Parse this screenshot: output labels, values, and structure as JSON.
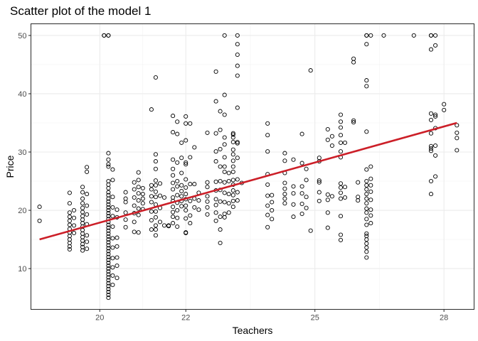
{
  "chart_data": {
    "type": "scatter",
    "title": "Scatter plot of the model 1",
    "xlabel": "Teachers",
    "ylabel": "Price",
    "xlim": [
      18.4,
      28.7
    ],
    "ylim": [
      3,
      52
    ],
    "x_ticks": [
      {
        "value": 20,
        "label": "20"
      },
      {
        "value": 22,
        "label": "22"
      },
      {
        "value": 25,
        "label": "25"
      },
      {
        "value": 28,
        "label": "28"
      }
    ],
    "y_ticks": [
      10,
      20,
      30,
      40,
      50
    ],
    "grid": true,
    "fit_line": {
      "x": [
        18.6,
        28.3
      ],
      "y": [
        15,
        35
      ],
      "color": "#cc1f28"
    },
    "points": [
      [
        18.6,
        20.6
      ],
      [
        18.6,
        18.2
      ],
      [
        19.3,
        23.0
      ],
      [
        19.3,
        21.2
      ],
      [
        19.3,
        19.6
      ],
      [
        19.3,
        18.9
      ],
      [
        19.3,
        18.2
      ],
      [
        19.3,
        17.5
      ],
      [
        19.3,
        16.8
      ],
      [
        19.3,
        16.2
      ],
      [
        19.3,
        15.6
      ],
      [
        19.3,
        15.0
      ],
      [
        19.3,
        14.4
      ],
      [
        19.3,
        13.8
      ],
      [
        19.3,
        13.3
      ],
      [
        19.4,
        20.0
      ],
      [
        19.4,
        18.7
      ],
      [
        19.4,
        17.4
      ],
      [
        19.4,
        16.1
      ],
      [
        19.6,
        24.0
      ],
      [
        19.6,
        23.1
      ],
      [
        19.6,
        22.0
      ],
      [
        19.6,
        21.2
      ],
      [
        19.6,
        20.4
      ],
      [
        19.6,
        19.7
      ],
      [
        19.6,
        19.0
      ],
      [
        19.6,
        18.4
      ],
      [
        19.6,
        17.8
      ],
      [
        19.6,
        17.2
      ],
      [
        19.6,
        16.6
      ],
      [
        19.6,
        16.0
      ],
      [
        19.6,
        15.4
      ],
      [
        19.6,
        14.8
      ],
      [
        19.6,
        14.2
      ],
      [
        19.6,
        13.7
      ],
      [
        19.6,
        13.1
      ],
      [
        19.7,
        27.4
      ],
      [
        19.7,
        26.6
      ],
      [
        19.7,
        22.8
      ],
      [
        19.7,
        20.8
      ],
      [
        19.7,
        19.3
      ],
      [
        19.7,
        17.6
      ],
      [
        19.7,
        15.7
      ],
      [
        19.7,
        14.6
      ],
      [
        19.7,
        13.4
      ],
      [
        20.1,
        50
      ],
      [
        20.1,
        50
      ],
      [
        20.2,
        50
      ],
      [
        20.2,
        50
      ],
      [
        20.2,
        29.8
      ],
      [
        20.2,
        28.7
      ],
      [
        20.2,
        27.9
      ],
      [
        20.2,
        27.5
      ],
      [
        20.2,
        25.0
      ],
      [
        20.2,
        24.4
      ],
      [
        20.2,
        23.8
      ],
      [
        20.2,
        23.1
      ],
      [
        20.2,
        22.6
      ],
      [
        20.2,
        22.0
      ],
      [
        20.2,
        21.5
      ],
      [
        20.2,
        21.0
      ],
      [
        20.2,
        20.5
      ],
      [
        20.2,
        20.0
      ],
      [
        20.2,
        19.5
      ],
      [
        20.2,
        19.0
      ],
      [
        20.2,
        18.5
      ],
      [
        20.2,
        18.0
      ],
      [
        20.2,
        17.5
      ],
      [
        20.2,
        17.0
      ],
      [
        20.2,
        16.5
      ],
      [
        20.2,
        16.0
      ],
      [
        20.2,
        15.5
      ],
      [
        20.2,
        15.0
      ],
      [
        20.2,
        14.5
      ],
      [
        20.2,
        14.0
      ],
      [
        20.2,
        13.5
      ],
      [
        20.2,
        13.0
      ],
      [
        20.2,
        12.5
      ],
      [
        20.2,
        12.0
      ],
      [
        20.2,
        11.5
      ],
      [
        20.2,
        11.0
      ],
      [
        20.2,
        10.5
      ],
      [
        20.2,
        10.0
      ],
      [
        20.2,
        9.5
      ],
      [
        20.2,
        9.0
      ],
      [
        20.2,
        8.5
      ],
      [
        20.2,
        8.0
      ],
      [
        20.2,
        7.5
      ],
      [
        20.2,
        7.0
      ],
      [
        20.2,
        6.5
      ],
      [
        20.2,
        6.0
      ],
      [
        20.2,
        5.5
      ],
      [
        20.2,
        5.0
      ],
      [
        20.3,
        27.0
      ],
      [
        20.3,
        25.2
      ],
      [
        20.3,
        22.3
      ],
      [
        20.3,
        20.5
      ],
      [
        20.3,
        19.0
      ],
      [
        20.3,
        17.2
      ],
      [
        20.3,
        15.2
      ],
      [
        20.3,
        13.6
      ],
      [
        20.3,
        11.8
      ],
      [
        20.3,
        10.2
      ],
      [
        20.3,
        8.8
      ],
      [
        20.3,
        7.2
      ],
      [
        20.4,
        20.1
      ],
      [
        20.4,
        18.8
      ],
      [
        20.4,
        15.3
      ],
      [
        20.4,
        13.8
      ],
      [
        20.4,
        11.9
      ],
      [
        20.4,
        10.5
      ],
      [
        20.4,
        8.4
      ],
      [
        20.6,
        23.1
      ],
      [
        20.6,
        22.0
      ],
      [
        20.6,
        21.4
      ],
      [
        20.6,
        19.6
      ],
      [
        20.6,
        18.4
      ],
      [
        20.6,
        17.1
      ],
      [
        20.8,
        24.8
      ],
      [
        20.8,
        23.6
      ],
      [
        20.8,
        22.2
      ],
      [
        20.8,
        20.8
      ],
      [
        20.8,
        19.5
      ],
      [
        20.8,
        18.0
      ],
      [
        20.8,
        16.3
      ],
      [
        20.9,
        26.5
      ],
      [
        20.9,
        25.2
      ],
      [
        20.9,
        24.0
      ],
      [
        20.9,
        22.9
      ],
      [
        20.9,
        21.7
      ],
      [
        20.9,
        20.3
      ],
      [
        20.9,
        19.2
      ],
      [
        20.9,
        16.2
      ],
      [
        21.0,
        23.8
      ],
      [
        21.0,
        22.8
      ],
      [
        21.0,
        22.0
      ],
      [
        21.0,
        21.2
      ],
      [
        21.0,
        20.2
      ],
      [
        21.2,
        37.3
      ],
      [
        21.2,
        24.3
      ],
      [
        21.2,
        23.6
      ],
      [
        21.2,
        22.4
      ],
      [
        21.2,
        21.4
      ],
      [
        21.2,
        19.8
      ],
      [
        21.2,
        18.3
      ],
      [
        21.2,
        16.7
      ],
      [
        21.3,
        42.8
      ],
      [
        21.3,
        29.6
      ],
      [
        21.3,
        28.4
      ],
      [
        21.3,
        27.1
      ],
      [
        21.3,
        25.1
      ],
      [
        21.3,
        24.3
      ],
      [
        21.3,
        23.2
      ],
      [
        21.3,
        22.3
      ],
      [
        21.3,
        21.0
      ],
      [
        21.3,
        19.8
      ],
      [
        21.3,
        18.8
      ],
      [
        21.3,
        17.4
      ],
      [
        21.3,
        16.7
      ],
      [
        21.3,
        15.7
      ],
      [
        21.4,
        24.6
      ],
      [
        21.4,
        22.5
      ],
      [
        21.4,
        20.4
      ],
      [
        21.4,
        18.0
      ],
      [
        21.5,
        22.2
      ],
      [
        21.5,
        17.4
      ],
      [
        21.6,
        17.3
      ],
      [
        21.6,
        17.4
      ],
      [
        21.7,
        36.2
      ],
      [
        21.7,
        33.4
      ],
      [
        21.7,
        28.7
      ],
      [
        21.7,
        27.1
      ],
      [
        21.7,
        26.0
      ],
      [
        21.7,
        24.7
      ],
      [
        21.7,
        23.6
      ],
      [
        21.7,
        22.2
      ],
      [
        21.7,
        21.6
      ],
      [
        21.7,
        20.6
      ],
      [
        21.7,
        19.7
      ],
      [
        21.7,
        18.9
      ],
      [
        21.7,
        17.8
      ],
      [
        21.8,
        35.2
      ],
      [
        21.8,
        33.1
      ],
      [
        21.8,
        28.2
      ],
      [
        21.8,
        25.0
      ],
      [
        21.8,
        24.1
      ],
      [
        21.8,
        22.6
      ],
      [
        21.8,
        21.3
      ],
      [
        21.8,
        20.0
      ],
      [
        21.8,
        18.7
      ],
      [
        21.8,
        17.2
      ],
      [
        21.9,
        31.6
      ],
      [
        21.9,
        29.0
      ],
      [
        21.9,
        26.4
      ],
      [
        21.9,
        24.3
      ],
      [
        21.9,
        23.3
      ],
      [
        21.9,
        22.4
      ],
      [
        21.9,
        21.6
      ],
      [
        21.9,
        20.7
      ],
      [
        22.0,
        36.1
      ],
      [
        22.0,
        34.9
      ],
      [
        22.0,
        32.0
      ],
      [
        22.0,
        28.2
      ],
      [
        22.0,
        27.9
      ],
      [
        22.0,
        25.3
      ],
      [
        22.0,
        23.9
      ],
      [
        22.0,
        22.8
      ],
      [
        22.0,
        21.9
      ],
      [
        22.0,
        20.8
      ],
      [
        22.0,
        20.0
      ],
      [
        22.0,
        18.6
      ],
      [
        22.0,
        16.1
      ],
      [
        22.0,
        16.2
      ],
      [
        22.1,
        34.9
      ],
      [
        22.1,
        29.1
      ],
      [
        22.1,
        24.5
      ],
      [
        22.1,
        21.6
      ],
      [
        22.1,
        19.1
      ],
      [
        22.1,
        17.8
      ],
      [
        22.2,
        30.8
      ],
      [
        22.2,
        24.5
      ],
      [
        22.2,
        22.0
      ],
      [
        22.2,
        20.5
      ],
      [
        22.3,
        23.0
      ],
      [
        22.3,
        21.7
      ],
      [
        22.3,
        20.1
      ],
      [
        22.5,
        33.3
      ],
      [
        22.5,
        24.8
      ],
      [
        22.5,
        24.0
      ],
      [
        22.5,
        22.4
      ],
      [
        22.5,
        21.5
      ],
      [
        22.5,
        20.5
      ],
      [
        22.5,
        19.3
      ],
      [
        22.7,
        43.8
      ],
      [
        22.7,
        38.7
      ],
      [
        22.7,
        33.2
      ],
      [
        22.7,
        30.1
      ],
      [
        22.7,
        28.4
      ],
      [
        22.7,
        24.9
      ],
      [
        22.7,
        23.4
      ],
      [
        22.7,
        21.9
      ],
      [
        22.7,
        20.9
      ],
      [
        22.7,
        19.6
      ],
      [
        22.7,
        18.2
      ],
      [
        22.8,
        37.0
      ],
      [
        22.8,
        33.8
      ],
      [
        22.8,
        30.5
      ],
      [
        22.8,
        27.5
      ],
      [
        22.8,
        25.0
      ],
      [
        22.8,
        23.5
      ],
      [
        22.8,
        21.5
      ],
      [
        22.8,
        18.9
      ],
      [
        22.8,
        16.7
      ],
      [
        22.8,
        14.4
      ],
      [
        22.9,
        50
      ],
      [
        22.9,
        39.8
      ],
      [
        22.9,
        36.4
      ],
      [
        22.9,
        32.5
      ],
      [
        22.9,
        31.3
      ],
      [
        22.9,
        29.1
      ],
      [
        22.9,
        27.5
      ],
      [
        22.9,
        26.6
      ],
      [
        22.9,
        24.8
      ],
      [
        22.9,
        23.0
      ],
      [
        22.9,
        21.4
      ],
      [
        22.9,
        19.4
      ],
      [
        22.9,
        18.8
      ],
      [
        23.0,
        26.4
      ],
      [
        23.0,
        25.0
      ],
      [
        23.0,
        22.8
      ],
      [
        23.0,
        21.2
      ],
      [
        23.0,
        19.6
      ],
      [
        23.1,
        33.2
      ],
      [
        23.1,
        33.0
      ],
      [
        23.1,
        32.5
      ],
      [
        23.1,
        31.7
      ],
      [
        23.1,
        30.4
      ],
      [
        23.1,
        29.6
      ],
      [
        23.1,
        28.5
      ],
      [
        23.1,
        27.5
      ],
      [
        23.1,
        26.6
      ],
      [
        23.1,
        25.2
      ],
      [
        23.1,
        24.4
      ],
      [
        23.1,
        23.4
      ],
      [
        23.1,
        22.6
      ],
      [
        23.1,
        21.6
      ],
      [
        23.1,
        20.6
      ],
      [
        23.2,
        50
      ],
      [
        23.2,
        48.5
      ],
      [
        23.2,
        46.7
      ],
      [
        23.2,
        44.8
      ],
      [
        23.2,
        43.1
      ],
      [
        23.2,
        37.6
      ],
      [
        23.2,
        31.7
      ],
      [
        23.2,
        31.5
      ],
      [
        23.2,
        29.0
      ],
      [
        23.2,
        25.3
      ],
      [
        23.2,
        23.1
      ],
      [
        23.2,
        21.7
      ],
      [
        23.3,
        24.7
      ],
      [
        23.9,
        34.9
      ],
      [
        23.9,
        32.9
      ],
      [
        23.9,
        30.1
      ],
      [
        23.9,
        26.2
      ],
      [
        23.9,
        24.4
      ],
      [
        23.9,
        22.5
      ],
      [
        23.9,
        20.8
      ],
      [
        23.9,
        19.2
      ],
      [
        23.9,
        17.1
      ],
      [
        24.0,
        22.6
      ],
      [
        24.0,
        21.4
      ],
      [
        24.0,
        20.0
      ],
      [
        24.0,
        18.5
      ],
      [
        24.3,
        29.8
      ],
      [
        24.3,
        28.5
      ],
      [
        24.3,
        26.4
      ],
      [
        24.3,
        24.7
      ],
      [
        24.3,
        23.7
      ],
      [
        24.3,
        22.8
      ],
      [
        24.3,
        22.0
      ],
      [
        24.3,
        21.2
      ],
      [
        24.5,
        28.7
      ],
      [
        24.5,
        24.1
      ],
      [
        24.5,
        22.9
      ],
      [
        24.5,
        21.0
      ],
      [
        24.5,
        18.9
      ],
      [
        24.7,
        33.1
      ],
      [
        24.7,
        28.1
      ],
      [
        24.7,
        24.1
      ],
      [
        24.7,
        22.9
      ],
      [
        24.7,
        21.1
      ],
      [
        24.7,
        19.4
      ],
      [
        24.8,
        27.1
      ],
      [
        24.8,
        25.2
      ],
      [
        24.8,
        22.3
      ],
      [
        24.8,
        20.4
      ],
      [
        24.9,
        44.0
      ],
      [
        24.9,
        16.5
      ],
      [
        25.1,
        29.0
      ],
      [
        25.1,
        28.4
      ],
      [
        25.1,
        25.1
      ],
      [
        25.1,
        24.8
      ],
      [
        25.1,
        23.1
      ],
      [
        25.1,
        21.6
      ],
      [
        25.3,
        33.9
      ],
      [
        25.3,
        32.1
      ],
      [
        25.3,
        22.7
      ],
      [
        25.3,
        21.8
      ],
      [
        25.3,
        19.6
      ],
      [
        25.3,
        17.0
      ],
      [
        25.4,
        32.7
      ],
      [
        25.4,
        31.1
      ],
      [
        25.4,
        22.4
      ],
      [
        25.6,
        36.4
      ],
      [
        25.6,
        35.2
      ],
      [
        25.6,
        34.2
      ],
      [
        25.6,
        32.9
      ],
      [
        25.6,
        31.6
      ],
      [
        25.6,
        30.1
      ],
      [
        25.6,
        29.1
      ],
      [
        25.6,
        24.6
      ],
      [
        25.6,
        23.9
      ],
      [
        25.6,
        23.0
      ],
      [
        25.6,
        22.0
      ],
      [
        25.6,
        19.0
      ],
      [
        25.6,
        15.8
      ],
      [
        25.6,
        14.9
      ],
      [
        25.7,
        31.6
      ],
      [
        25.7,
        24.0
      ],
      [
        25.7,
        22.2
      ],
      [
        25.9,
        46.0
      ],
      [
        25.9,
        45.4
      ],
      [
        25.9,
        35.4
      ],
      [
        25.9,
        35.1
      ],
      [
        26.0,
        24.8
      ],
      [
        26.0,
        22.3
      ],
      [
        26.0,
        21.7
      ],
      [
        26.2,
        50
      ],
      [
        26.2,
        50
      ],
      [
        26.2,
        48.5
      ],
      [
        26.2,
        42.3
      ],
      [
        26.2,
        41.3
      ],
      [
        26.2,
        33.5
      ],
      [
        26.2,
        27.0
      ],
      [
        26.2,
        25.0
      ],
      [
        26.2,
        24.3
      ],
      [
        26.2,
        23.6
      ],
      [
        26.2,
        22.8
      ],
      [
        26.2,
        22.0
      ],
      [
        26.2,
        21.2
      ],
      [
        26.2,
        20.3
      ],
      [
        26.2,
        19.6
      ],
      [
        26.2,
        18.5
      ],
      [
        26.2,
        17.5
      ],
      [
        26.2,
        16.0
      ],
      [
        26.2,
        15.6
      ],
      [
        26.2,
        15.0
      ],
      [
        26.2,
        14.3
      ],
      [
        26.2,
        13.6
      ],
      [
        26.2,
        12.9
      ],
      [
        26.2,
        11.9
      ],
      [
        26.3,
        50
      ],
      [
        26.3,
        27.5
      ],
      [
        26.3,
        25.4
      ],
      [
        26.3,
        24.3
      ],
      [
        26.3,
        23.2
      ],
      [
        26.3,
        21.8
      ],
      [
        26.3,
        20.1
      ],
      [
        26.3,
        19.1
      ],
      [
        26.3,
        17.8
      ],
      [
        26.6,
        50
      ],
      [
        27.3,
        50
      ],
      [
        27.7,
        50
      ],
      [
        27.7,
        50
      ],
      [
        27.7,
        47.6
      ],
      [
        27.7,
        36.6
      ],
      [
        27.7,
        35.5
      ],
      [
        27.7,
        33.2
      ],
      [
        27.7,
        31.0
      ],
      [
        27.7,
        30.6
      ],
      [
        27.7,
        30.2
      ],
      [
        27.7,
        25.0
      ],
      [
        27.7,
        22.8
      ],
      [
        27.8,
        50
      ],
      [
        27.8,
        48.3
      ],
      [
        27.8,
        36.4
      ],
      [
        27.8,
        36.1
      ],
      [
        27.8,
        34.1
      ],
      [
        27.8,
        31.1
      ],
      [
        27.8,
        29.4
      ],
      [
        27.8,
        25.8
      ],
      [
        28.0,
        38.2
      ],
      [
        28.0,
        37.2
      ],
      [
        28.3,
        34.6
      ],
      [
        28.3,
        33.3
      ],
      [
        28.3,
        32.4
      ],
      [
        28.3,
        30.3
      ]
    ]
  }
}
